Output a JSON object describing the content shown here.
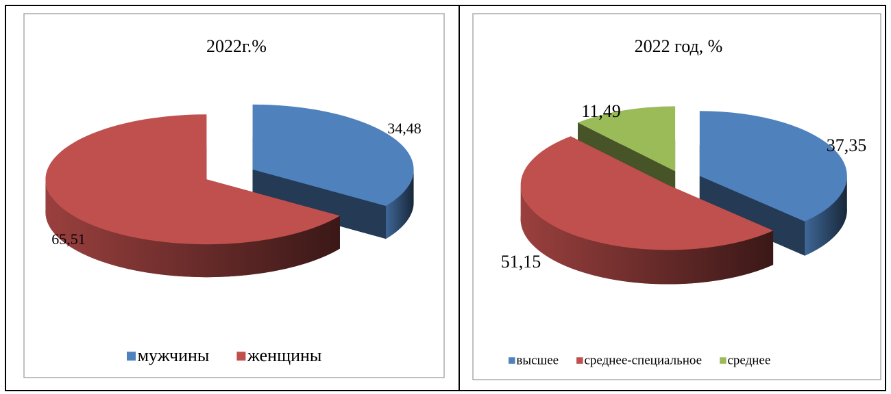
{
  "chart_data": [
    {
      "type": "pie",
      "title": "2022г.%",
      "categories": [
        "мужчины",
        "женщины"
      ],
      "values": [
        34.48,
        65.51
      ],
      "value_labels": [
        "34,48",
        "65,51"
      ],
      "colors": [
        "#4f81bd",
        "#c0504d"
      ],
      "legend": "bottom"
    },
    {
      "type": "pie",
      "title": "2022 год, %",
      "categories": [
        "высшее",
        "среднее-специальное",
        "среднее"
      ],
      "values": [
        37.35,
        51.15,
        11.49
      ],
      "value_labels": [
        "37,35",
        "51,15",
        "11,49"
      ],
      "colors": [
        "#4f81bd",
        "#c0504d",
        "#9bbb59"
      ],
      "legend": "bottom"
    }
  ]
}
